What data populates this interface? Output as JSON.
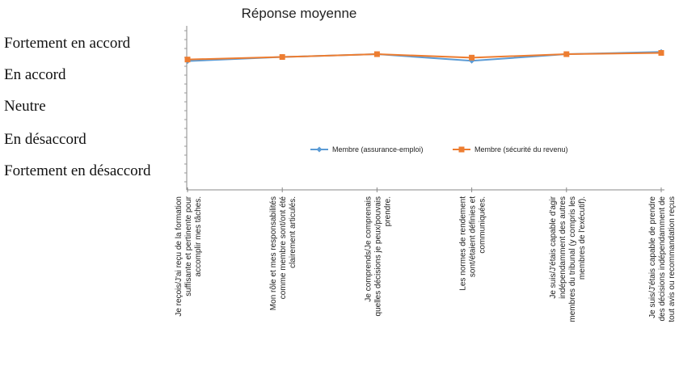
{
  "chart_data": {
    "type": "line",
    "title": "Réponse moyenne",
    "xlabel": "",
    "ylabel": "",
    "y_tick_labels": [
      "Fortement en désaccord",
      "En désaccord",
      "Neutre",
      "En accord",
      "Fortement en accord"
    ],
    "ylim": [
      1,
      5
    ],
    "grid": false,
    "legend_position": "center-right",
    "categories": [
      [
        "Je reçois/J'ai reçu de la formation",
        "suffisante et pertinente pour",
        "accomplir mes tâches."
      ],
      [
        "Mon rôle et mes responsabilités",
        "comme membre sont/ont été",
        "clairement articulés."
      ],
      [
        "Je comprends/Je comprenais",
        "quelles décisions je peux/pouvais",
        "prendre."
      ],
      [
        "Les normes de rendement",
        "sont/étaient définies et",
        "communiquées."
      ],
      [
        "Je suis/J'étais capable d'agir",
        "indépendamment des autres",
        "membres du tribunal (y compris les",
        "membres de l'exécutif)."
      ],
      [
        "Je suis/J'étais capable de prendre",
        "des décisions indépendamment de",
        "tout avis ou recommandation reçus"
      ]
    ],
    "series": [
      {
        "name": "Membre (assurance-emploi)",
        "color": "#5b9bd5",
        "marker": "diamond",
        "values": [
          4.42,
          4.55,
          4.64,
          4.43,
          4.64,
          4.71
        ]
      },
      {
        "name": "Membre (sécurité du revenu)",
        "color": "#ed7d31",
        "marker": "square",
        "values": [
          4.47,
          4.55,
          4.64,
          4.53,
          4.64,
          4.68
        ]
      }
    ]
  }
}
